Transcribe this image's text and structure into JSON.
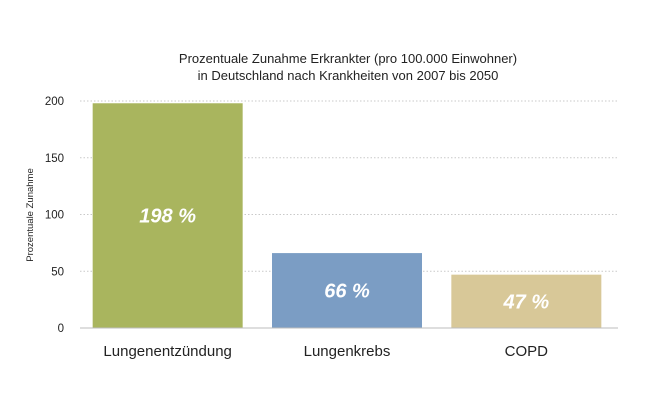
{
  "chart_data": {
    "type": "bar",
    "title_lines": [
      "Prozentuale Zunahme Erkrankter (pro 100.000 Einwohner)",
      "in Deutschland nach Krankheiten von 2007 bis 2050"
    ],
    "xlabel": "",
    "ylabel": "Prozentuale Zunahme",
    "ylim": [
      0,
      200
    ],
    "yticks": [
      0,
      50,
      100,
      150,
      200
    ],
    "grid": true,
    "categories": [
      "Lungenentzündung",
      "Lungenkrebs",
      "COPD"
    ],
    "values": [
      198,
      66,
      47
    ],
    "data_labels": [
      "198 %",
      "66 %",
      "47 %"
    ],
    "colors": [
      "#a9b55e",
      "#7b9dc4",
      "#d8c898"
    ]
  }
}
